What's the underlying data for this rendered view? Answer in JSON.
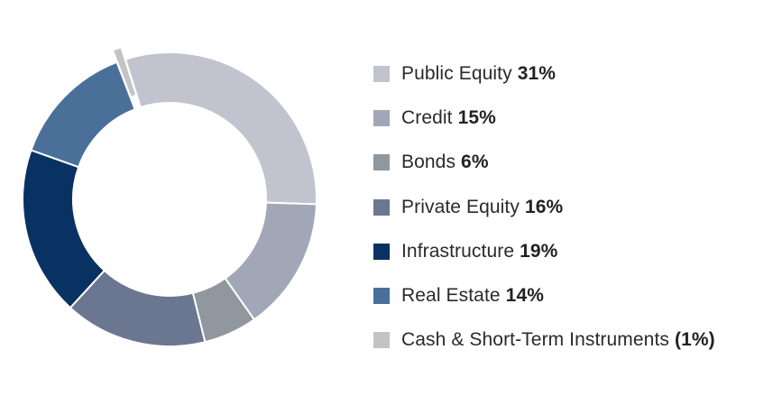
{
  "chart_data": {
    "type": "pie",
    "style": "donut",
    "title": "",
    "legend_position": "right",
    "slices": [
      {
        "label": "Public Equity",
        "value": 31,
        "value_label": "31%",
        "color": "#c1c4cf",
        "exploded": false
      },
      {
        "label": "Credit",
        "value": 15,
        "value_label": "15%",
        "color": "#a1a7b7",
        "exploded": false
      },
      {
        "label": "Bonds",
        "value": 6,
        "value_label": "6%",
        "color": "#90979f",
        "exploded": false
      },
      {
        "label": "Private Equity",
        "value": 16,
        "value_label": "16%",
        "color": "#6b7690",
        "exploded": false
      },
      {
        "label": "Infrastructure",
        "value": 19,
        "value_label": "19%",
        "color": "#083261",
        "exploded": false
      },
      {
        "label": "Real Estate",
        "value": 14,
        "value_label": "14%",
        "color": "#4a7099",
        "exploded": false
      },
      {
        "label": "Cash & Short-Term Instruments",
        "value": 1,
        "value_label": "(1%)",
        "color": "#c3c3c3",
        "exploded": true
      }
    ]
  }
}
